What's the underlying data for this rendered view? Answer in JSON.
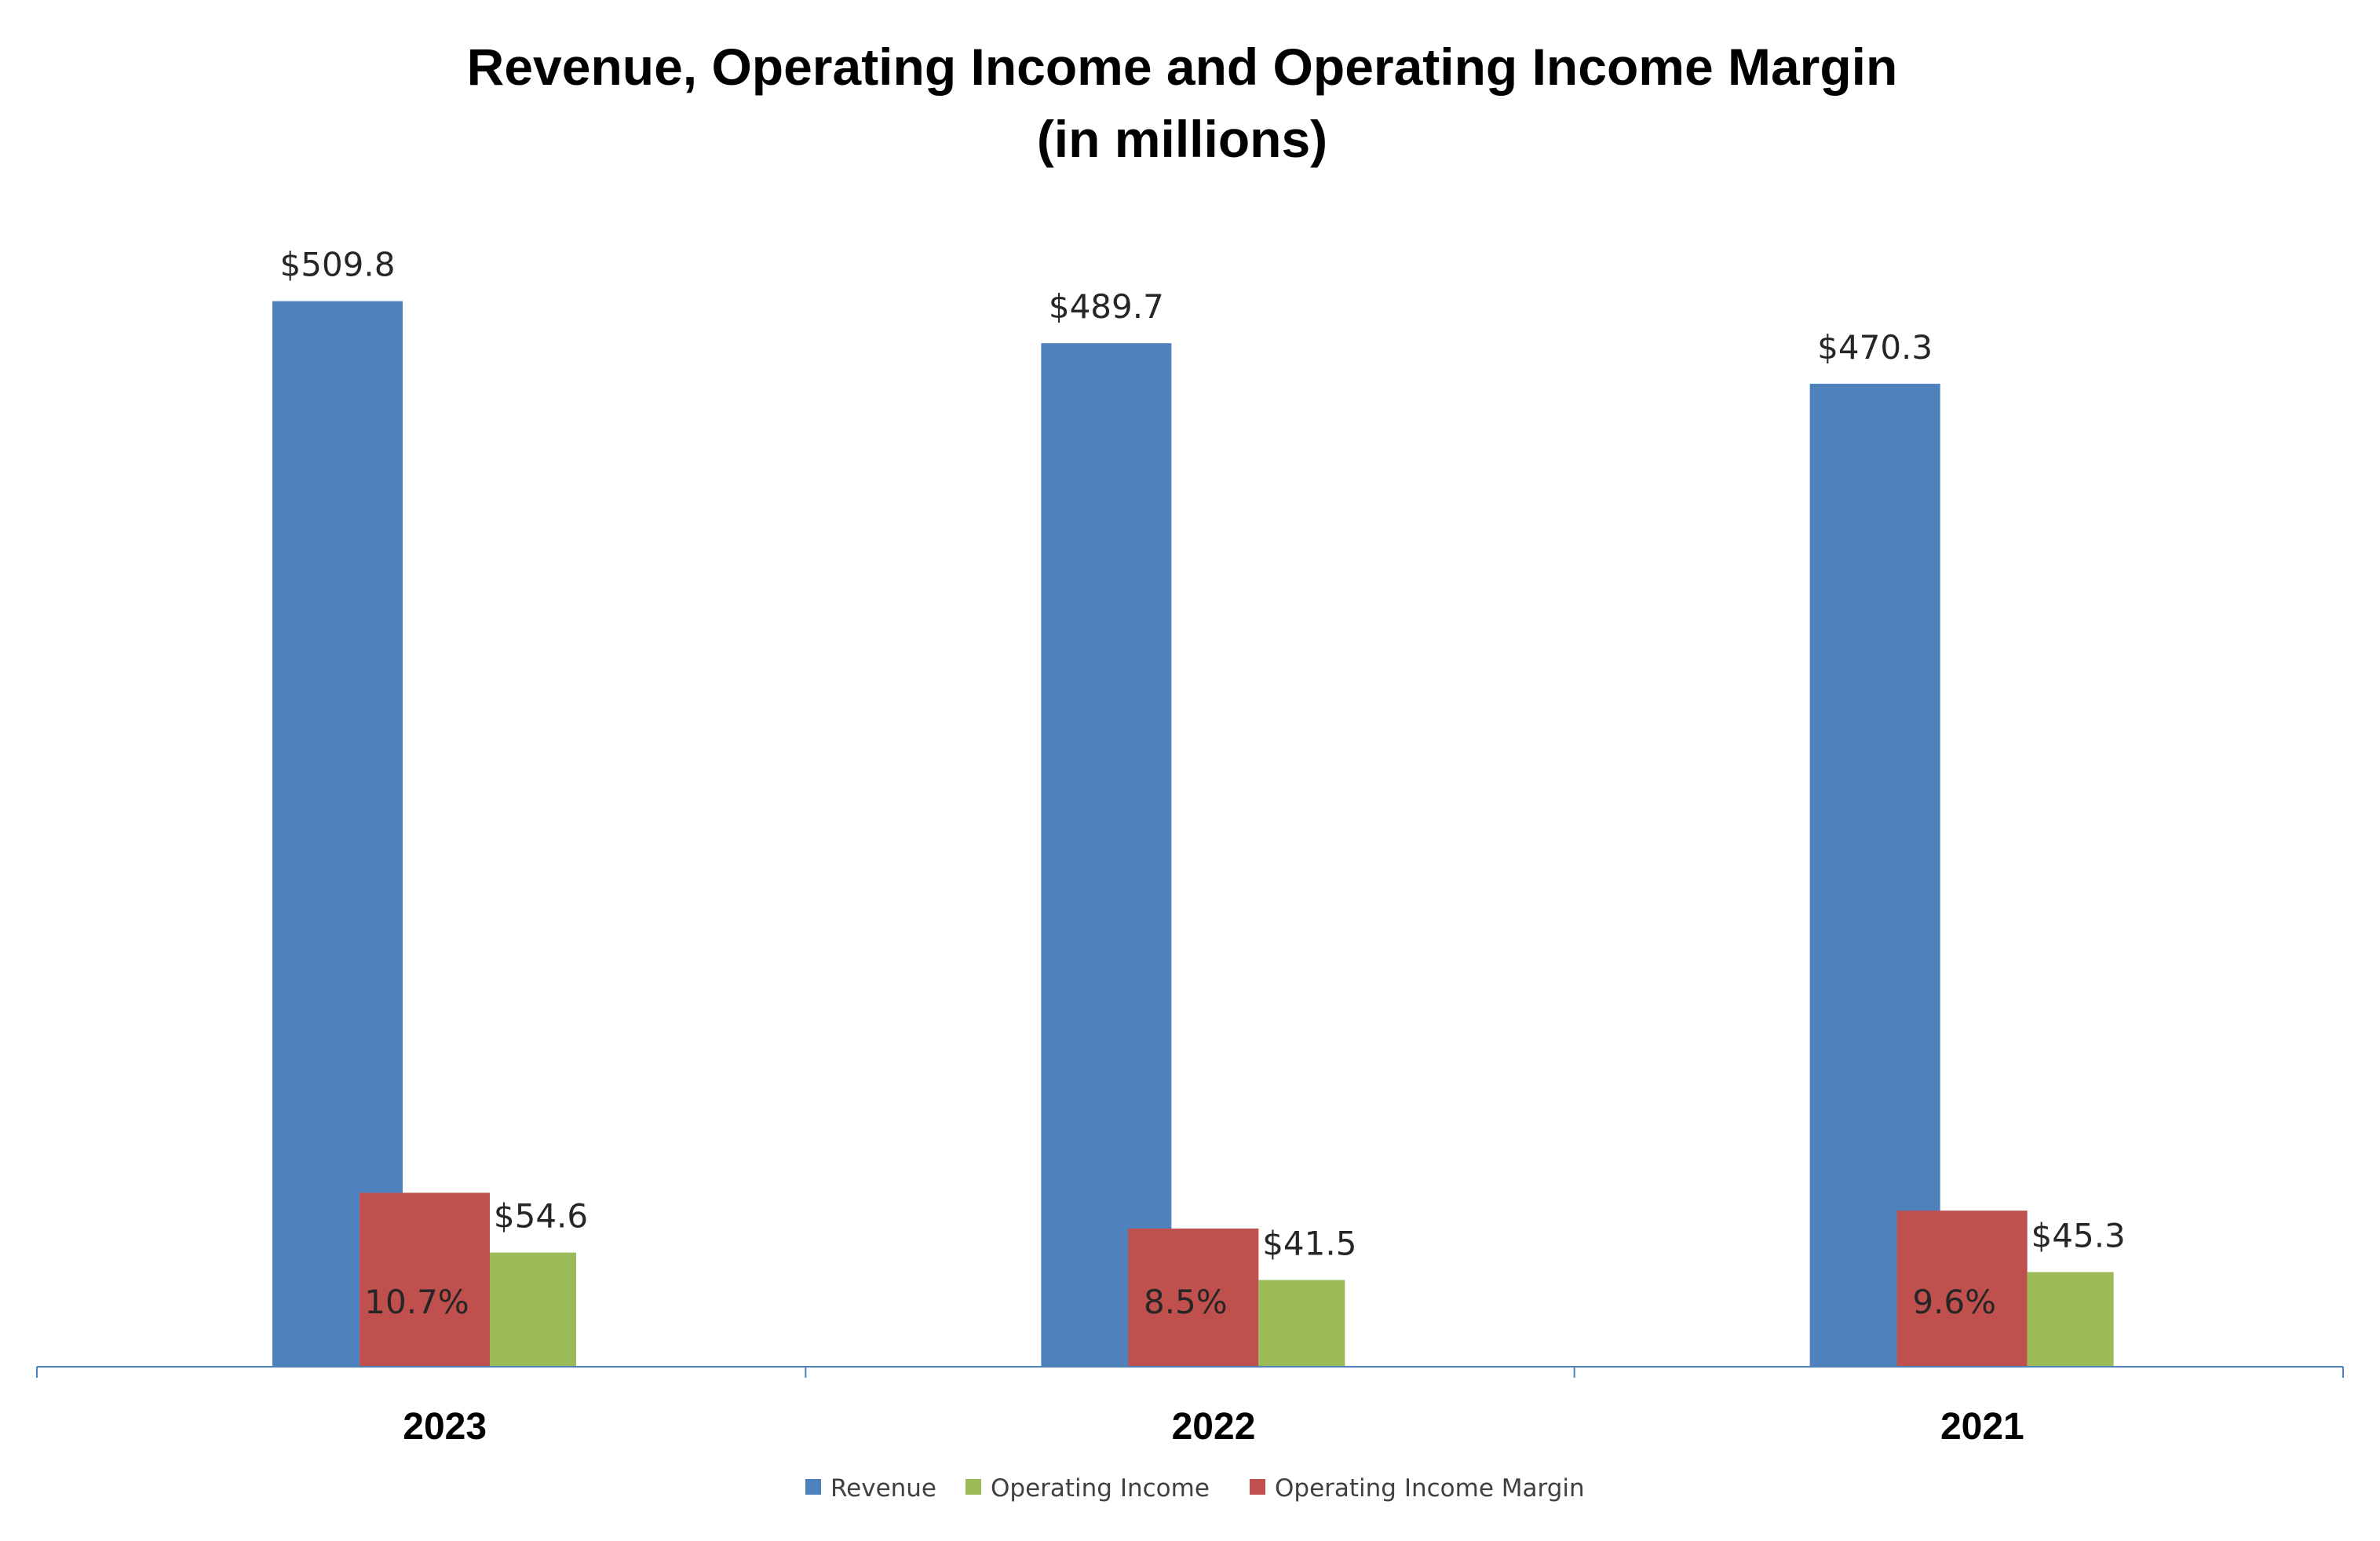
{
  "chart_data": {
    "type": "bar",
    "title": "Revenue, Operating Income and Operating Income Margin",
    "subtitle": "(in millions)",
    "categories": [
      "2023",
      "2022",
      "2021"
    ],
    "series": [
      {
        "name": "Revenue",
        "color": "#4f81bd",
        "values": [
          509.8,
          489.7,
          470.3
        ],
        "labels": [
          "$509.8",
          "$489.7",
          "$470.3"
        ]
      },
      {
        "name": "Operating Income Margin",
        "color": "#c0504d",
        "values": [
          10.7,
          8.5,
          9.6
        ],
        "labels": [
          "10.7%",
          "8.5%",
          "9.6%"
        ]
      },
      {
        "name": "Operating Income",
        "color": "#9bbb59",
        "values": [
          54.6,
          41.5,
          45.3
        ],
        "labels": [
          "$54.6",
          "$41.5",
          "$45.3"
        ]
      }
    ],
    "legend": {
      "position": "bottom",
      "entries": [
        {
          "label": "Revenue",
          "color": "#4f81bd"
        },
        {
          "label": "Operating Income",
          "color": "#9bbb59"
        },
        {
          "label": "Operating Income Margin",
          "color": "#c0504d"
        }
      ]
    },
    "ylim": [
      0,
      560
    ],
    "margin_scale_note": "Operating Income Margin bars plotted on a separate (secondary) scale",
    "margin_ylim": [
      0,
      72
    ],
    "grid": false,
    "axis_color": "#4f81bd"
  }
}
